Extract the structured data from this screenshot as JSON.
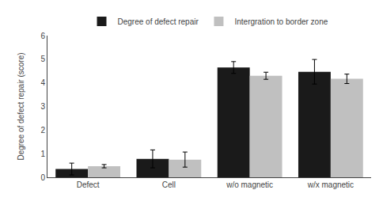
{
  "chart_data": {
    "type": "bar",
    "categories": [
      "Defect",
      "Cell",
      "w/o magnetic",
      "w/x magnetic"
    ],
    "series": [
      {
        "name": "Degree of defect repair",
        "color": "#1a1a1a",
        "values": [
          0.35,
          0.78,
          4.65,
          4.47
        ],
        "errors": [
          0.25,
          0.38,
          0.25,
          0.52
        ]
      },
      {
        "name": "Intergration to border zone",
        "color": "#c0c0c0",
        "values": [
          0.47,
          0.75,
          4.3,
          4.17
        ],
        "errors": [
          0.07,
          0.32,
          0.15,
          0.2
        ]
      }
    ],
    "ylabel": "Degree of defect repair (score)",
    "ylim": [
      0,
      6
    ],
    "yticks": [
      0,
      1,
      2,
      3,
      4,
      5,
      6
    ],
    "grid": false,
    "legend": "top"
  }
}
